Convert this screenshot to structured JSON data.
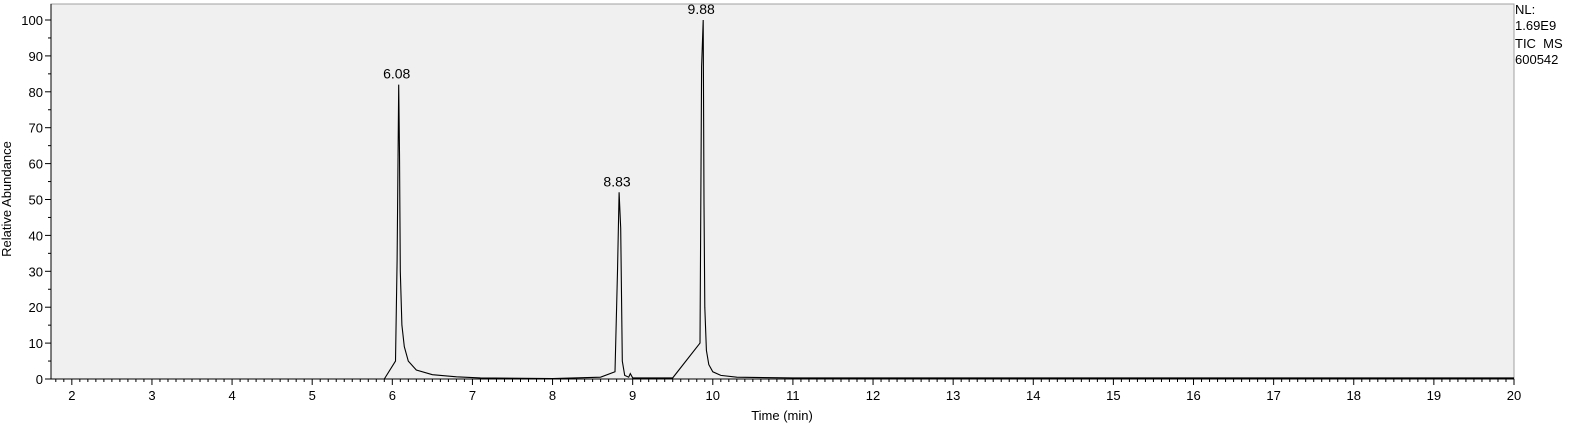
{
  "chart_data": {
    "type": "line",
    "title": "",
    "xlabel": "Time (min)",
    "ylabel": "Relative Abundance",
    "xlim": [
      1.74,
      20
    ],
    "ylim": [
      0,
      100
    ],
    "x_ticks": [
      2,
      3,
      4,
      5,
      6,
      7,
      8,
      9,
      10,
      11,
      12,
      13,
      14,
      15,
      16,
      17,
      18,
      19,
      20
    ],
    "y_ticks": [
      0,
      10,
      20,
      30,
      40,
      50,
      60,
      70,
      80,
      90,
      100
    ],
    "grid": false,
    "colors": {
      "plot_background": "#f0f0f0",
      "trace": "#000000"
    },
    "series": [
      {
        "x": [
          1.74,
          5.9,
          6.04,
          6.06,
          6.08,
          6.09,
          6.1,
          6.12,
          6.15,
          6.2,
          6.3,
          6.5,
          6.8,
          7.1,
          8.0,
          8.6,
          8.78,
          8.81,
          8.83,
          8.85,
          8.87,
          8.9,
          8.95,
          8.97,
          9.0,
          9.5,
          9.84,
          9.86,
          9.88,
          9.89,
          9.9,
          9.92,
          9.95,
          10.0,
          10.1,
          10.3,
          11.0,
          20.0
        ],
        "y": [
          0,
          0,
          5,
          33,
          82,
          63,
          30,
          15,
          9,
          5,
          2.5,
          1.2,
          0.6,
          0.3,
          0.1,
          0.5,
          2,
          30,
          52,
          42,
          5,
          1,
          0.5,
          1.5,
          0.3,
          0.3,
          10,
          87,
          100,
          49,
          20,
          8,
          4,
          2,
          1,
          0.5,
          0.3,
          0.3
        ]
      }
    ],
    "peak_labels": [
      {
        "x": 6.08,
        "y": 82,
        "text": "6.08"
      },
      {
        "x": 8.83,
        "y": 52,
        "text": "8.83"
      },
      {
        "x": 9.88,
        "y": 100,
        "text": "9.88"
      }
    ]
  },
  "info": {
    "line1": "NL:",
    "line2": "1.69E9",
    "line3": "TIC  MS",
    "line4": "600542"
  }
}
